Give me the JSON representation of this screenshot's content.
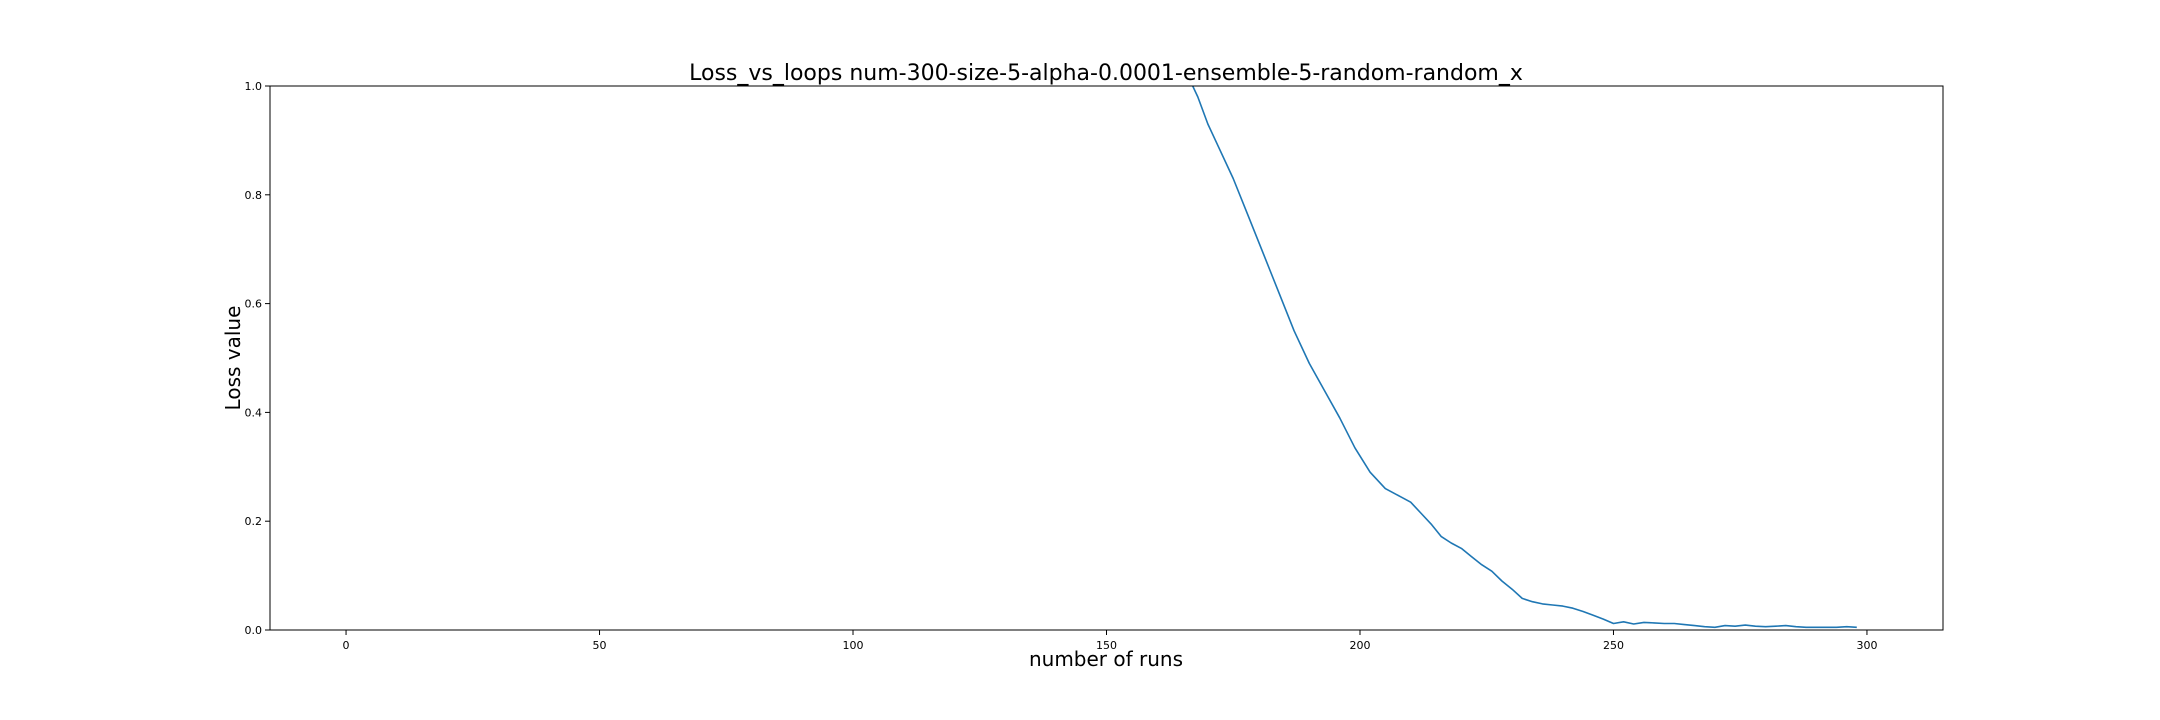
{
  "chart_data": {
    "type": "line",
    "title": "Loss_vs_loops num-300-size-5-alpha-0.0001-ensemble-5-random-random_x",
    "xlabel": "number of runs",
    "ylabel": "Loss value",
    "xlim": [
      -15,
      315
    ],
    "ylim": [
      0,
      1.0
    ],
    "xticks": [
      0,
      50,
      100,
      150,
      200,
      250,
      300
    ],
    "yticks": [
      0.0,
      0.2,
      0.4,
      0.6,
      0.8,
      1.0
    ],
    "xtick_labels": [
      "0",
      "50",
      "100",
      "150",
      "200",
      "250",
      "300"
    ],
    "ytick_labels": [
      "0.0",
      "0.2",
      "0.4",
      "0.6",
      "0.8",
      "1.0"
    ],
    "grid": false,
    "series": [
      {
        "color": "#1f77b4",
        "x": [
          166,
          168,
          170,
          172,
          175,
          178,
          181,
          184,
          187,
          190,
          193,
          196,
          199,
          202,
          205,
          208,
          210,
          212,
          214,
          216,
          218,
          220,
          222,
          224,
          226,
          228,
          230,
          232,
          234,
          236,
          238,
          240,
          242,
          244,
          246,
          248,
          250,
          252,
          254,
          256,
          258,
          260,
          262,
          264,
          266,
          268,
          270,
          272,
          274,
          276,
          278,
          280,
          282,
          284,
          286,
          288,
          290,
          292,
          294,
          296,
          298
        ],
        "y": [
          1.02,
          0.98,
          0.93,
          0.89,
          0.83,
          0.76,
          0.69,
          0.62,
          0.55,
          0.49,
          0.44,
          0.39,
          0.335,
          0.29,
          0.26,
          0.245,
          0.235,
          0.215,
          0.195,
          0.172,
          0.16,
          0.15,
          0.135,
          0.12,
          0.108,
          0.09,
          0.075,
          0.058,
          0.052,
          0.048,
          0.046,
          0.044,
          0.04,
          0.034,
          0.027,
          0.02,
          0.012,
          0.015,
          0.011,
          0.014,
          0.013,
          0.012,
          0.012,
          0.01,
          0.008,
          0.006,
          0.005,
          0.008,
          0.007,
          0.009,
          0.007,
          0.006,
          0.007,
          0.008,
          0.006,
          0.005,
          0.005,
          0.005,
          0.005,
          0.006,
          0.005
        ]
      }
    ]
  }
}
